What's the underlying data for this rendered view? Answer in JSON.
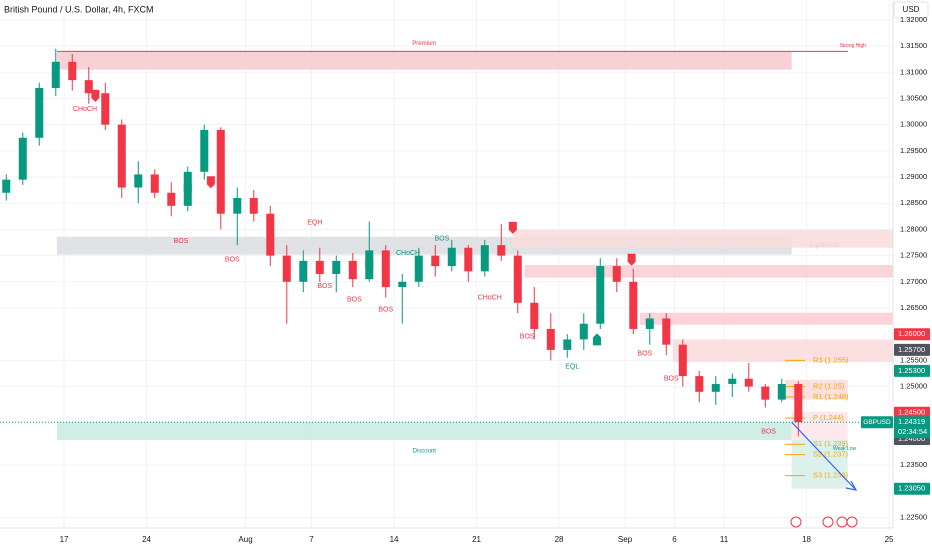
{
  "chart_data": {
    "type": "candlestick",
    "title": "British Pound / U.S. Dollar, 4h, FXCM",
    "currency": "USD",
    "symbol": "GBPUSD",
    "countdown": "02:34:54",
    "up_color": "#089981",
    "down_color": "#f23645",
    "xlim": [
      -3.88,
      50.24
    ],
    "ylim": [
      1.223,
      1.3238
    ],
    "xticks": [
      {
        "value": 0,
        "label": "17"
      },
      {
        "value": 5,
        "label": "24"
      },
      {
        "value": 11,
        "label": "Aug"
      },
      {
        "value": 15,
        "label": "7"
      },
      {
        "value": 20,
        "label": "14"
      },
      {
        "value": 25,
        "label": "21"
      },
      {
        "value": 30,
        "label": "28"
      },
      {
        "value": 34,
        "label": "Sep"
      },
      {
        "value": 37,
        "label": "6"
      },
      {
        "value": 40,
        "label": "11"
      },
      {
        "value": 45,
        "label": "18"
      },
      {
        "value": 50,
        "label": "25"
      }
    ],
    "yticks": [
      {
        "value": 1.32,
        "label": "1.32000"
      },
      {
        "value": 1.315,
        "label": "1.31500"
      },
      {
        "value": 1.31,
        "label": "1.31000"
      },
      {
        "value": 1.305,
        "label": "1.30500"
      },
      {
        "value": 1.3,
        "label": "1.30000"
      },
      {
        "value": 1.295,
        "label": "1.29500"
      },
      {
        "value": 1.29,
        "label": "1.29000"
      },
      {
        "value": 1.285,
        "label": "1.28500"
      },
      {
        "value": 1.28,
        "label": "1.28000"
      },
      {
        "value": 1.275,
        "label": "1.27500"
      },
      {
        "value": 1.27,
        "label": "1.27000"
      },
      {
        "value": 1.265,
        "label": "1.26500"
      },
      {
        "value": 1.255,
        "label": "1.25500"
      },
      {
        "value": 1.25,
        "label": "1.25000"
      },
      {
        "value": 1.235,
        "label": "1.23500"
      },
      {
        "value": 1.225,
        "label": "1.22500"
      }
    ],
    "price_labels": [
      {
        "value": 1.26,
        "label": "1.26000",
        "color": "#f23645"
      },
      {
        "value": 1.257,
        "label": "1.25700",
        "color": "#50535e"
      },
      {
        "value": 1.253,
        "label": "1.25300",
        "color": "#089981"
      },
      {
        "value": 1.245,
        "label": "1.24500",
        "color": "#f23645"
      },
      {
        "value": 1.24,
        "label": "1.24000",
        "color": "#50535e"
      },
      {
        "value": 1.2305,
        "label": "1.23050",
        "color": "#089981"
      }
    ],
    "last_price": {
      "value": 1.24319,
      "label": "1.24319"
    },
    "x": [
      -4,
      -3,
      -2,
      -1,
      0,
      1,
      2,
      3,
      4,
      5,
      6,
      7,
      8,
      9,
      10,
      11,
      12,
      13,
      14,
      15,
      16,
      17,
      18,
      19,
      20,
      21,
      22,
      23,
      24,
      25,
      26,
      27,
      28,
      29,
      30,
      31,
      32,
      33,
      34,
      35,
      36,
      37,
      38,
      39,
      40,
      41,
      42,
      43,
      44
    ],
    "open": [
      1.287,
      1.2895,
      1.2975,
      1.307,
      1.312,
      1.3085,
      1.306,
      1.3,
      1.288,
      1.2905,
      1.287,
      1.2845,
      1.291,
      1.299,
      1.283,
      1.286,
      1.283,
      1.275,
      1.27,
      1.274,
      1.2715,
      1.274,
      1.2705,
      1.276,
      1.269,
      1.27,
      1.275,
      1.273,
      1.2765,
      1.272,
      1.277,
      1.275,
      1.266,
      1.261,
      1.257,
      1.259,
      1.262,
      1.273,
      1.27,
      1.261,
      1.263,
      1.258,
      1.252,
      1.249,
      1.2505,
      1.2515,
      1.25,
      1.2475,
      1.2505
    ],
    "high": [
      1.2905,
      1.2985,
      1.308,
      1.3145,
      1.3135,
      1.311,
      1.308,
      1.301,
      1.293,
      1.2915,
      1.289,
      1.292,
      1.3,
      1.2995,
      1.288,
      1.2875,
      1.2845,
      1.277,
      1.276,
      1.2765,
      1.275,
      1.2755,
      1.2815,
      1.277,
      1.2715,
      1.2765,
      1.277,
      1.278,
      1.277,
      1.278,
      1.281,
      1.276,
      1.269,
      1.264,
      1.26,
      1.264,
      1.2745,
      1.2745,
      1.2725,
      1.264,
      1.264,
      1.259,
      1.253,
      1.252,
      1.2525,
      1.2545,
      1.2505,
      1.2515,
      1.251
    ],
    "low": [
      1.2855,
      1.2885,
      1.296,
      1.3055,
      1.3065,
      1.304,
      1.299,
      1.286,
      1.285,
      1.286,
      1.2825,
      1.2835,
      1.2895,
      1.28,
      1.277,
      1.2815,
      1.273,
      1.262,
      1.268,
      1.27,
      1.268,
      1.269,
      1.27,
      1.267,
      1.262,
      1.269,
      1.271,
      1.272,
      1.27,
      1.271,
      1.274,
      1.264,
      1.259,
      1.255,
      1.2555,
      1.257,
      1.261,
      1.268,
      1.26,
      1.258,
      1.256,
      1.25,
      1.247,
      1.2465,
      1.248,
      1.249,
      1.246,
      1.247,
      1.2405
    ],
    "close": [
      1.2895,
      1.2975,
      1.307,
      1.312,
      1.3085,
      1.306,
      1.3,
      1.288,
      1.2905,
      1.287,
      1.2845,
      1.291,
      1.299,
      1.283,
      1.286,
      1.283,
      1.275,
      1.27,
      1.274,
      1.2715,
      1.274,
      1.2705,
      1.276,
      1.269,
      1.27,
      1.275,
      1.273,
      1.2765,
      1.272,
      1.277,
      1.275,
      1.266,
      1.261,
      1.257,
      1.259,
      1.262,
      1.273,
      1.27,
      1.261,
      1.263,
      1.258,
      1.252,
      1.249,
      1.2505,
      1.2515,
      1.25,
      1.2475,
      1.2505,
      1.24319
    ],
    "zones": [
      {
        "from": -0.43,
        "to": 44.1,
        "top": 1.314,
        "bottom": 1.3105,
        "color": "#f7c9cd",
        "label": "Premium"
      },
      {
        "from": -0.43,
        "to": 44.1,
        "top": 1.2786,
        "bottom": 1.2752,
        "color": "#dcdde0",
        "label": "Equilibrium"
      },
      {
        "from": -0.43,
        "to": 44.1,
        "top": 1.2433,
        "bottom": 1.2398,
        "color": "#c7ebe2",
        "label": "Discount"
      },
      {
        "from": 27.2,
        "to": 50.24,
        "top": 1.2799,
        "bottom": 1.2765,
        "color": "#fadadd"
      },
      {
        "from": 27.9,
        "to": 50.24,
        "top": 1.2732,
        "bottom": 1.2708,
        "color": "#f9cdd1"
      },
      {
        "from": 34.9,
        "to": 50.24,
        "top": 1.2641,
        "bottom": 1.2618,
        "color": "#f9cdd1"
      },
      {
        "from": 36.9,
        "to": 50.24,
        "top": 1.259,
        "bottom": 1.2547,
        "color": "#fadadd"
      },
      {
        "from": 43.7,
        "to": 47.5,
        "top": 1.2513,
        "bottom": 1.2475,
        "color": "#fadadd"
      },
      {
        "from": 44.1,
        "to": 47.5,
        "top": 1.2452,
        "bottom": 1.2398,
        "color": "#fde5e7"
      },
      {
        "from": 44.1,
        "to": 47.5,
        "top": 1.2398,
        "bottom": 1.2305,
        "color": "#d7efe9"
      }
    ],
    "pivots": [
      {
        "label": "R3 (1.255)",
        "value": 1.255
      },
      {
        "label": "R2 (1.25)",
        "value": 1.25
      },
      {
        "label": "R1 (1.248)",
        "value": 1.248
      },
      {
        "label": "P (1.244)",
        "value": 1.244
      },
      {
        "label": "S1 (1.239)",
        "value": 1.239
      },
      {
        "label": "S2 (1.237)",
        "value": 1.237
      },
      {
        "label": "S3 (1.233)",
        "value": 1.233
      }
    ],
    "annotations": [
      {
        "text": "CHoCH",
        "x": 1.27,
        "y": 1.303,
        "color": "#f23645"
      },
      {
        "text": "BOS",
        "x": 7.09,
        "y": 1.2778,
        "color": "#f23645"
      },
      {
        "text": "BOS",
        "x": 10.2,
        "y": 1.2742,
        "color": "#f23645"
      },
      {
        "text": "EQH",
        "x": 15.2,
        "y": 1.2813,
        "color": "#f23645"
      },
      {
        "text": "BOS",
        "x": 15.8,
        "y": 1.2692,
        "color": "#f23645"
      },
      {
        "text": "BOS",
        "x": 17.6,
        "y": 1.2666,
        "color": "#f23645"
      },
      {
        "text": "BOS",
        "x": 19.5,
        "y": 1.2647,
        "color": "#f23645"
      },
      {
        "text": "CHoCH",
        "x": 20.85,
        "y": 1.2755,
        "color": "#089981"
      },
      {
        "text": "BOS",
        "x": 22.9,
        "y": 1.2782,
        "color": "#089981"
      },
      {
        "text": "CHoCH",
        "x": 25.8,
        "y": 1.267,
        "color": "#f23645"
      },
      {
        "text": "BOS",
        "x": 28.07,
        "y": 1.2595,
        "color": "#f23645"
      },
      {
        "text": "EQL",
        "x": 30.8,
        "y": 1.2538,
        "color": "#089981"
      },
      {
        "text": "BOS",
        "x": 35.2,
        "y": 1.2563,
        "color": "#f23645"
      },
      {
        "text": "BOS",
        "x": 36.8,
        "y": 1.2515,
        "color": "#f23645"
      },
      {
        "text": "BOS",
        "x": 42.7,
        "y": 1.2414,
        "color": "#f23645"
      },
      {
        "text": "Strong High",
        "x": 47.8,
        "y": 1.3151,
        "color": "#f23645"
      },
      {
        "text": "Weak Low",
        "x": 47.3,
        "y": 1.2381,
        "color": "#089981"
      }
    ],
    "markers": [
      {
        "x": 1.9,
        "y": 1.3055,
        "color": "#f23645"
      },
      {
        "x": 7.5,
        "y": 1.2883,
        "color": "#089981"
      },
      {
        "x": 8.9,
        "y": 1.289,
        "color": "#f23645"
      },
      {
        "x": 18.5,
        "y": 1.2738,
        "color": "#089981"
      },
      {
        "x": 27.2,
        "y": 1.2803,
        "color": "#f23645"
      },
      {
        "x": 32.3,
        "y": 1.259,
        "color": "#089981"
      },
      {
        "x": 34.4,
        "y": 1.2742,
        "color": "#f23645"
      }
    ]
  }
}
